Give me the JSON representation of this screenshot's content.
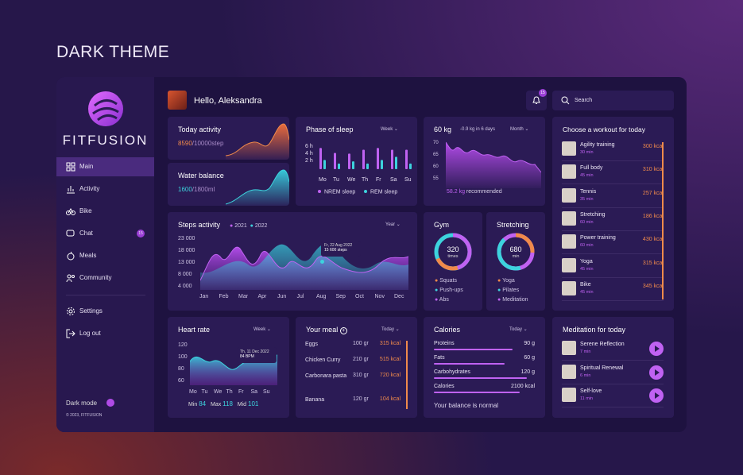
{
  "page_title": "DARK THEME",
  "brand": "FITFUSION",
  "greeting": "Hello, Aleksandra",
  "notif_count": "15",
  "search": {
    "placeholder": "Search"
  },
  "nav": [
    {
      "label": "Main",
      "icon": "grid-icon"
    },
    {
      "label": "Activity",
      "icon": "chart-icon"
    },
    {
      "label": "Bike",
      "icon": "bike-icon"
    },
    {
      "label": "Chat",
      "icon": "chat-icon",
      "badge": "15"
    },
    {
      "label": "Meals",
      "icon": "apple-icon"
    },
    {
      "label": "Community",
      "icon": "people-icon"
    }
  ],
  "nav2": [
    {
      "label": "Settings",
      "icon": "gear-icon"
    },
    {
      "label": "Log out",
      "icon": "logout-icon"
    }
  ],
  "dark_mode": "Dark mode",
  "copyright": "© 2023, FITFUSION",
  "today_activity": {
    "title": "Today activity",
    "value": "8590",
    "goal": "/10000step"
  },
  "water": {
    "title": "Water balance",
    "value": "1600",
    "goal": "/1800ml"
  },
  "sleep": {
    "title": "Phase of sleep",
    "period": "Week",
    "yticks": [
      "6 h",
      "4 h",
      "2 h"
    ],
    "days": [
      "Mo",
      "Tu",
      "We",
      "Th",
      "Fr",
      "Sa",
      "Su"
    ],
    "legend": [
      "NREM sleep",
      "REM sleep"
    ],
    "nrem": [
      6,
      4.6,
      4.4,
      5.5,
      6,
      5.5,
      5.5
    ],
    "rem": [
      2.6,
      1.6,
      2.2,
      1.6,
      2.6,
      3.5,
      1.6
    ]
  },
  "weight": {
    "title": "60 kg",
    "delta": "-0.9 kg in 6 days",
    "period": "Month",
    "yticks": [
      "70",
      "65",
      "60",
      "55"
    ],
    "value": "58.2 kg",
    "note": "recommended"
  },
  "workouts": {
    "title": "Choose a workout for today",
    "items": [
      {
        "name": "Agility training",
        "dur": "30 min",
        "kcal": "300 kcal"
      },
      {
        "name": "Full body",
        "dur": "45 min",
        "kcal": "310 kcal"
      },
      {
        "name": "Tennis",
        "dur": "35 min",
        "kcal": "257 kcal"
      },
      {
        "name": "Stretching",
        "dur": "60 min",
        "kcal": "186 kcal"
      },
      {
        "name": "Power training",
        "dur": "60 min",
        "kcal": "430 kcal"
      },
      {
        "name": "Yoga",
        "dur": "45 min",
        "kcal": "315 kcal"
      },
      {
        "name": "Bike",
        "dur": "45 min",
        "kcal": "345 kcal"
      }
    ]
  },
  "steps": {
    "title": "Steps activity",
    "legend": [
      "2021",
      "2022"
    ],
    "period": "Year",
    "yticks": [
      "23 000",
      "18 000",
      "13 000",
      "8 000",
      "4 000"
    ],
    "months": [
      "Jan",
      "Feb",
      "Mar",
      "Apr",
      "Jun",
      "Jul",
      "Aug",
      "Sep",
      "Oct",
      "Nov",
      "Dec"
    ],
    "tooltip_date": "Fr, 22 Aug 2022",
    "tooltip_value": "15 600 steps"
  },
  "gym": {
    "title": "Gym",
    "value": "320",
    "unit": "times",
    "legend": [
      "Squats",
      "Push-ups",
      "Abs"
    ]
  },
  "stretch": {
    "title": "Stretching",
    "value": "680",
    "unit": "min",
    "legend": [
      "Yoga",
      "Pilates",
      "Meditation"
    ]
  },
  "heart": {
    "title": "Heart rate",
    "period": "Week",
    "yticks": [
      "120",
      "100",
      "80",
      "60"
    ],
    "days": [
      "Mo",
      "Tu",
      "We",
      "Th",
      "Fr",
      "Sa",
      "Su"
    ],
    "tooltip_date": "Th, 11 Dec 2022",
    "tooltip_value": "84 BPM",
    "min_label": "Min",
    "min": "84",
    "max_label": "Max",
    "max": "118",
    "mid_label": "Mid",
    "mid": "101"
  },
  "meal": {
    "title": "Your meal",
    "period": "Today",
    "items": [
      {
        "name": "Eggs",
        "gr": "100 gr",
        "kcal": "315 kcal"
      },
      {
        "name": "Chicken Curry",
        "gr": "210 gr",
        "kcal": "515 kcal"
      },
      {
        "name": "Carbonara pasta",
        "gr": "310 gr",
        "kcal": "720 kcal"
      },
      {
        "name": "Banana",
        "gr": "120 gr",
        "kcal": "104 kcal"
      }
    ]
  },
  "calories": {
    "title": "Calories",
    "period": "Today",
    "items": [
      {
        "name": "Proteins",
        "val": "90 g",
        "frac": 0.78
      },
      {
        "name": "Fats",
        "val": "60 g",
        "frac": 0.7
      },
      {
        "name": "Carbohydrates",
        "val": "120 g",
        "frac": 0.92
      },
      {
        "name": "Calories",
        "val": "2100 kcal",
        "frac": 0.85
      }
    ],
    "note": "Your balance is normal"
  },
  "meditation": {
    "title": "Meditation for today",
    "items": [
      {
        "name": "Serene Reflection",
        "dur": "7 min"
      },
      {
        "name": "Spiritual Renewal",
        "dur": "6 min"
      },
      {
        "name": "Self-love",
        "dur": "11 min"
      }
    ]
  }
}
